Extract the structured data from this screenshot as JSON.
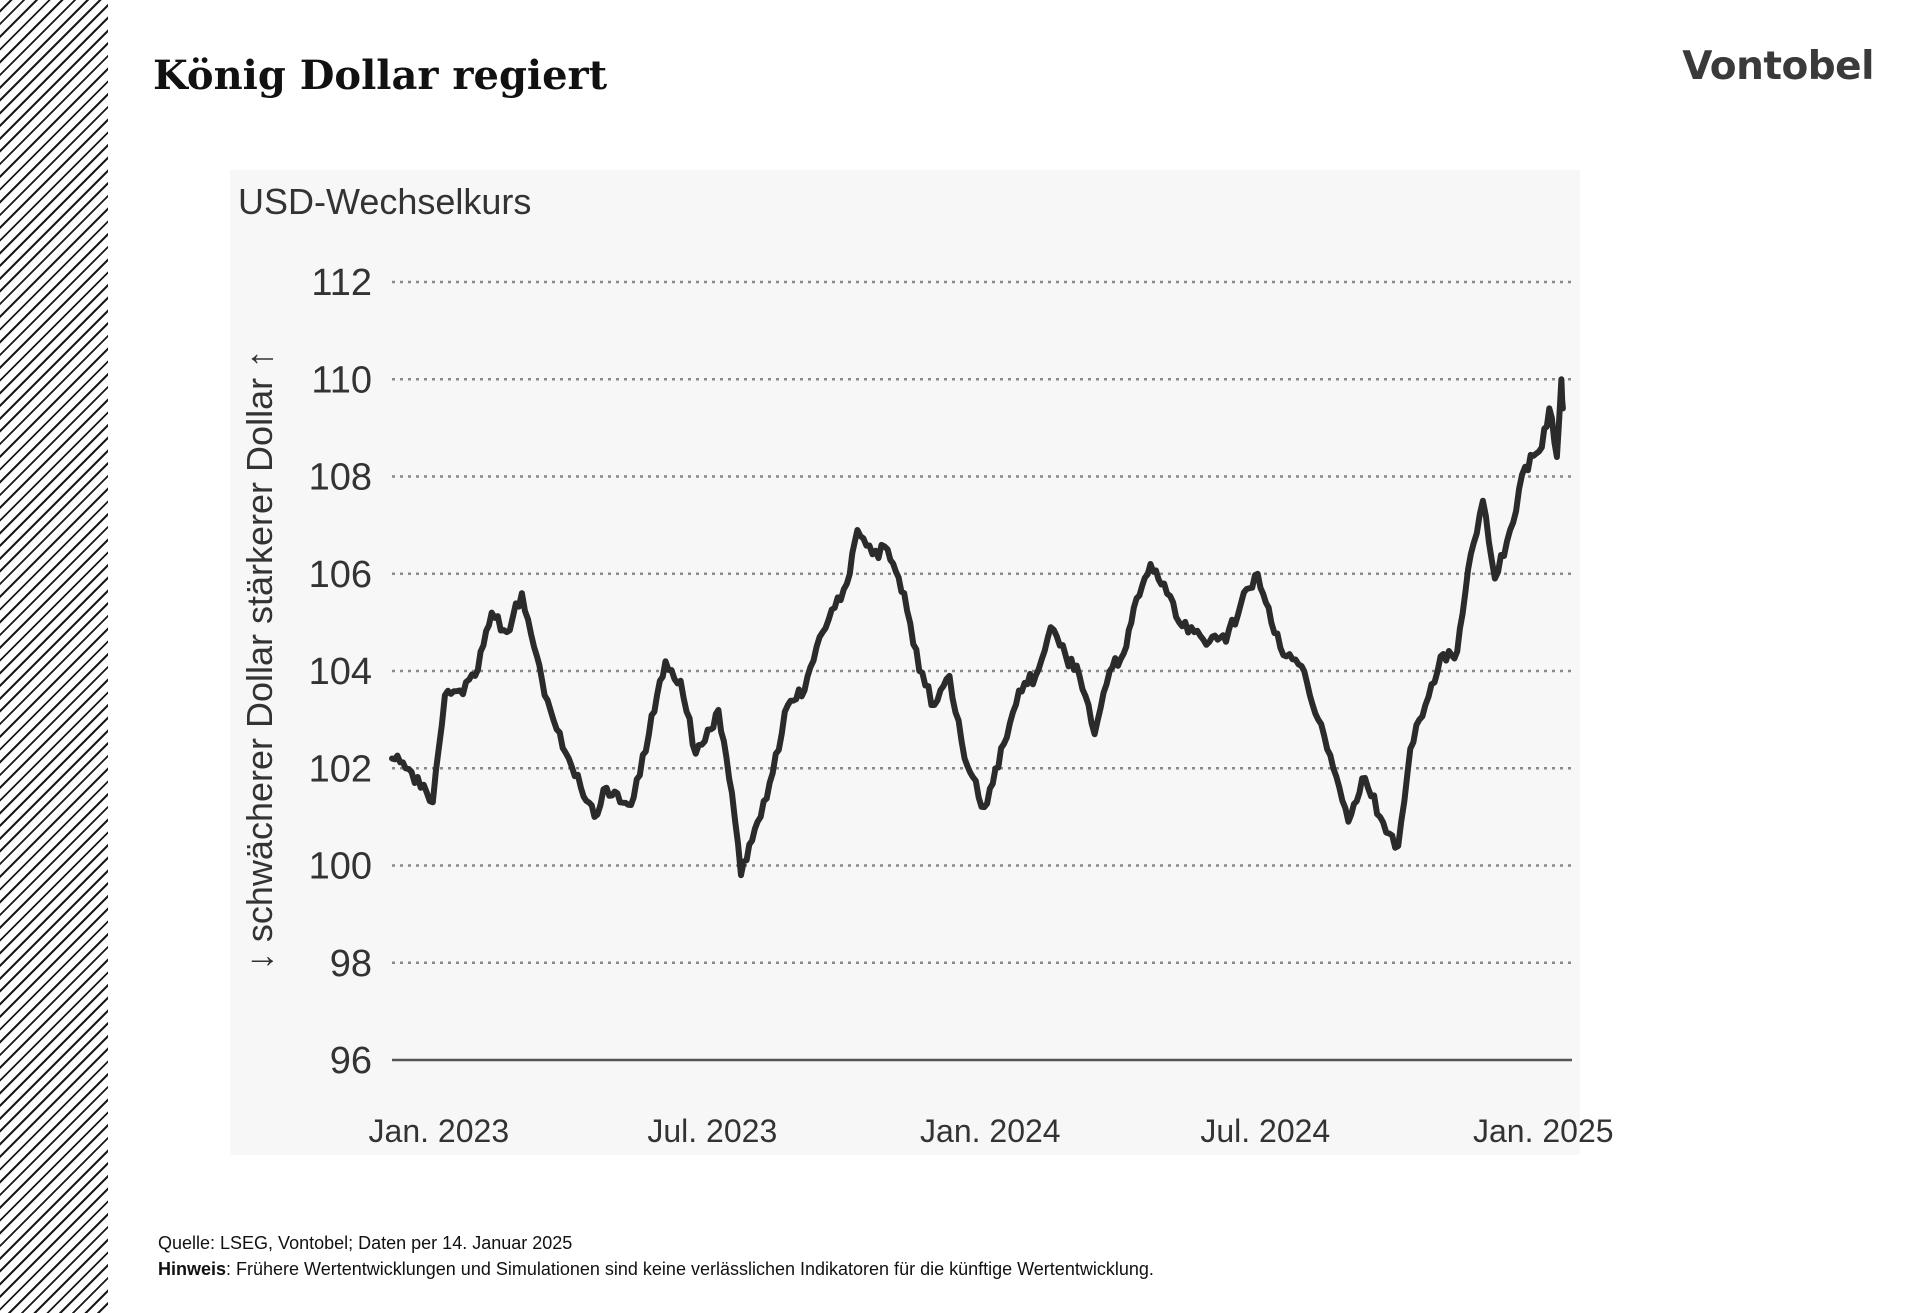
{
  "header": {
    "title": "König Dollar regiert",
    "brand": "Vontobel"
  },
  "footer": {
    "source": "Quelle: LSEG, Vontobel; Daten per 14. Januar 2025",
    "note_label": "Hinweis",
    "note_text": ": Frühere Wertentwicklungen und Simulationen sind keine verlässlichen Indikatoren für die künftige Wertentwicklung."
  },
  "colors": {
    "line": "#2b2b2b",
    "grid": "#8a8a8a",
    "panel": "#f7f7f7",
    "text": "#333333"
  },
  "chart_data": {
    "type": "line",
    "title": "USD-Wechselkurs",
    "ylabel": "↓ schwächerer Dollar   stärkerer Dollar ↑",
    "xlabel": "",
    "ylim": [
      96,
      112
    ],
    "yticks": [
      96,
      98,
      100,
      102,
      104,
      106,
      108,
      110,
      112
    ],
    "xlim": [
      "2022-12-01",
      "2025-01-20"
    ],
    "xticks": [
      {
        "date": "2023-01-01",
        "label": "Jan. 2023"
      },
      {
        "date": "2023-07-01",
        "label": "Jul. 2023"
      },
      {
        "date": "2024-01-01",
        "label": "Jan. 2024"
      },
      {
        "date": "2024-07-01",
        "label": "Jul. 2024"
      },
      {
        "date": "2025-01-01",
        "label": "Jan. 2025"
      }
    ],
    "grid": "horizontal dotted",
    "series": [
      {
        "x": [
          "2022-12-01",
          "2022-12-10",
          "2022-12-20",
          "2022-12-28",
          "2023-01-05",
          "2023-01-15",
          "2023-01-25",
          "2023-02-05",
          "2023-02-15",
          "2023-02-25",
          "2023-03-05",
          "2023-03-12",
          "2023-03-20",
          "2023-03-28",
          "2023-04-05",
          "2023-04-14",
          "2023-04-22",
          "2023-05-01",
          "2023-05-10",
          "2023-05-20",
          "2023-05-31",
          "2023-06-10",
          "2023-06-20",
          "2023-06-30",
          "2023-07-05",
          "2023-07-14",
          "2023-07-20",
          "2023-07-31",
          "2023-08-10",
          "2023-08-20",
          "2023-08-31",
          "2023-09-10",
          "2023-09-20",
          "2023-09-30",
          "2023-10-05",
          "2023-10-15",
          "2023-10-25",
          "2023-11-05",
          "2023-11-15",
          "2023-11-25",
          "2023-12-05",
          "2023-12-15",
          "2023-12-28",
          "2024-01-10",
          "2024-01-20",
          "2024-01-31",
          "2024-02-10",
          "2024-02-20",
          "2024-02-29",
          "2024-03-10",
          "2024-03-20",
          "2024-03-31",
          "2024-04-05",
          "2024-04-16",
          "2024-04-25",
          "2024-05-05",
          "2024-05-15",
          "2024-05-25",
          "2024-06-05",
          "2024-06-15",
          "2024-06-26",
          "2024-07-05",
          "2024-07-15",
          "2024-07-25",
          "2024-08-05",
          "2024-08-15",
          "2024-08-25",
          "2024-09-05",
          "2024-09-15",
          "2024-09-27",
          "2024-10-05",
          "2024-10-15",
          "2024-10-25",
          "2024-11-05",
          "2024-11-14",
          "2024-11-22",
          "2024-11-30",
          "2024-12-10",
          "2024-12-20",
          "2024-12-31",
          "2025-01-05",
          "2025-01-10",
          "2025-01-13",
          "2025-01-14"
        ],
        "y": [
          102.2,
          102.0,
          101.6,
          101.3,
          103.5,
          103.6,
          103.9,
          105.2,
          104.8,
          105.6,
          104.5,
          103.5,
          102.8,
          102.2,
          101.6,
          101.0,
          101.6,
          101.3,
          101.4,
          102.7,
          104.2,
          103.8,
          102.3,
          102.8,
          103.2,
          101.5,
          99.8,
          100.9,
          101.9,
          103.3,
          103.6,
          104.7,
          105.3,
          106.0,
          106.9,
          106.4,
          106.5,
          105.6,
          104.0,
          103.3,
          103.9,
          102.2,
          101.2,
          102.5,
          103.6,
          103.9,
          104.9,
          104.3,
          103.9,
          102.7,
          104.0,
          104.5,
          105.3,
          106.2,
          105.8,
          105.0,
          104.8,
          104.6,
          104.6,
          105.4,
          106.0,
          105.0,
          104.3,
          104.1,
          103.0,
          102.0,
          100.9,
          101.8,
          101.0,
          100.4,
          102.4,
          103.3,
          104.3,
          104.4,
          106.4,
          107.5,
          105.9,
          106.9,
          108.2,
          108.6,
          109.4,
          108.4,
          110.0,
          109.4
        ]
      }
    ]
  }
}
